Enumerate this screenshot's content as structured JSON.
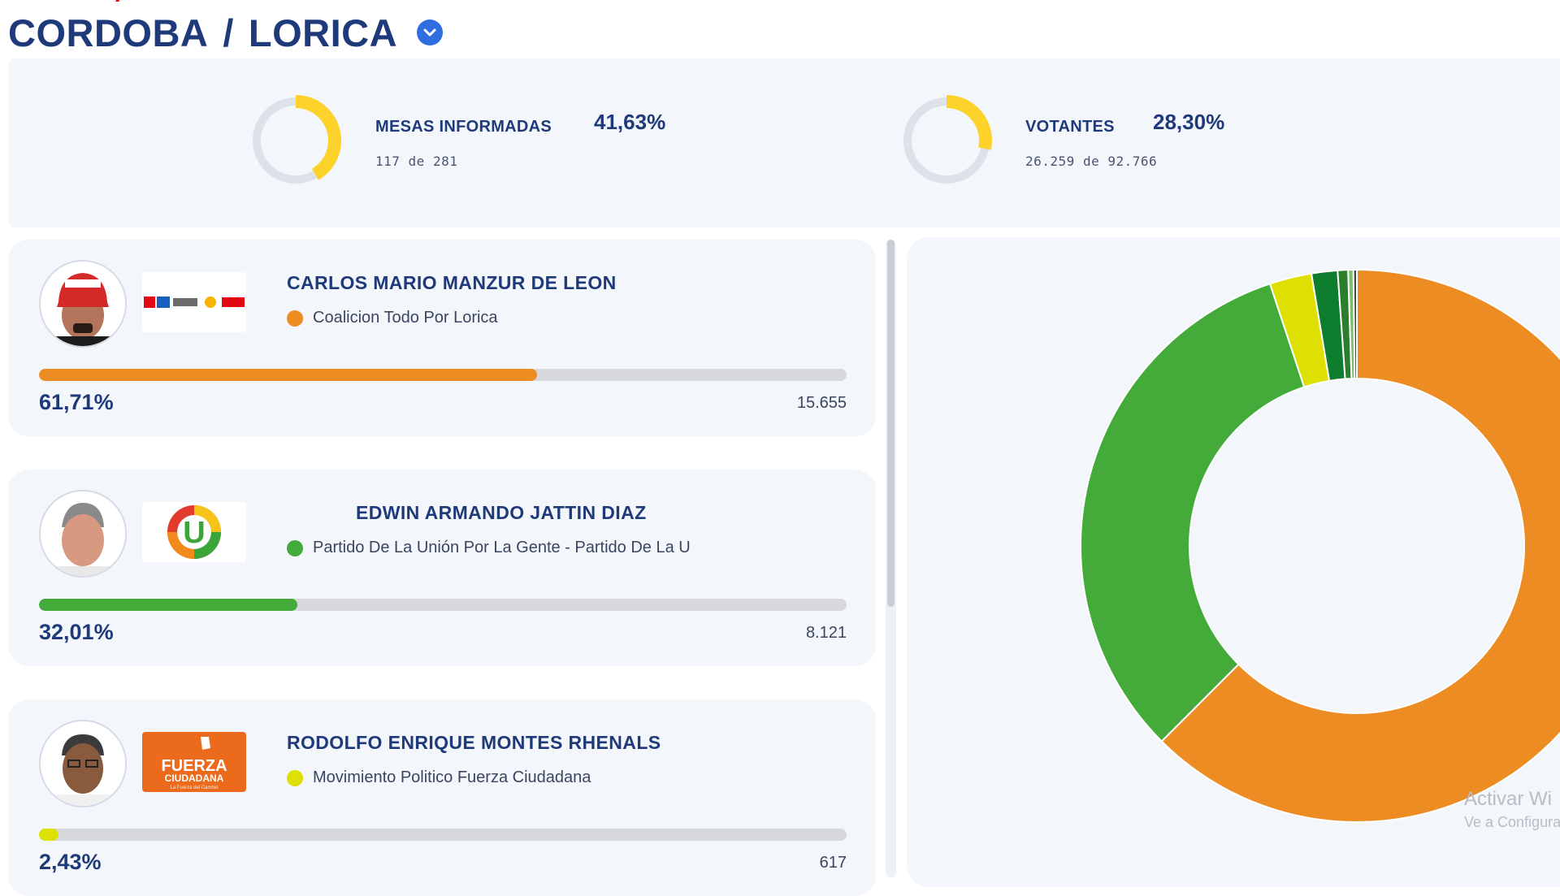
{
  "header": {
    "department": "CORDOBA",
    "separator": "/",
    "municipality": "LORICA",
    "dropdown_icon": "chevron-down-icon"
  },
  "stats": {
    "mesas": {
      "label": "MESAS INFORMADAS",
      "percent": "41,63%",
      "reported": "117",
      "connector": "de",
      "total": "281",
      "fraction": 0.4163,
      "color": "#fdd22b"
    },
    "votantes": {
      "label": "VOTANTES",
      "percent": "28,30%",
      "reported": "26.259",
      "connector": "de",
      "total": "92.766",
      "fraction": 0.283,
      "color": "#fdd22b"
    }
  },
  "candidates": [
    {
      "name": "CARLOS MARIO MANZUR DE LEON",
      "party": "Coalicion Todo Por Lorica",
      "percent": "61,71%",
      "votes": "15.655",
      "share": 0.6171,
      "color": "#ee8c24"
    },
    {
      "name": "EDWIN ARMANDO JATTIN DIAZ",
      "party": "Partido De La Unión Por La Gente - Partido De La U",
      "percent": "32,01%",
      "votes": "8.121",
      "share": 0.3201,
      "color": "#44ab3a"
    },
    {
      "name": "RODOLFO ENRIQUE MONTES RHENALS",
      "party": "Movimiento Politico Fuerza Ciudadana",
      "percent": "2,43%",
      "votes": "617",
      "share": 0.0243,
      "color": "#dde000"
    }
  ],
  "party_logos": {
    "coalicion": "coalition-logos-strip",
    "u": "U",
    "fuerza_line1": "FUERZA",
    "fuerza_line2": "CIUDADANA",
    "fuerza_tagline": "La Fuerza del Cambio"
  },
  "chart_data": {
    "type": "pie",
    "donut": true,
    "slices": [
      {
        "label": "CARLOS MARIO MANZUR DE LEON",
        "value": 61.71,
        "color": "#ee8c24"
      },
      {
        "label": "EDWIN ARMANDO JATTIN DIAZ",
        "value": 32.01,
        "color": "#44ab3a"
      },
      {
        "label": "RODOLFO ENRIQUE MONTES RHENALS",
        "value": 2.43,
        "color": "#dde000"
      },
      {
        "value": 1.5,
        "color": "#0f7d2e"
      },
      {
        "value": 0.6,
        "color": "#2c7d2c"
      },
      {
        "value": 0.3,
        "color": "#7bbf6a"
      },
      {
        "value": 0.2,
        "color": "#3d4a3d"
      }
    ]
  },
  "watermark": {
    "line1": "Activar Wi",
    "line2": "Ve a Configura"
  }
}
